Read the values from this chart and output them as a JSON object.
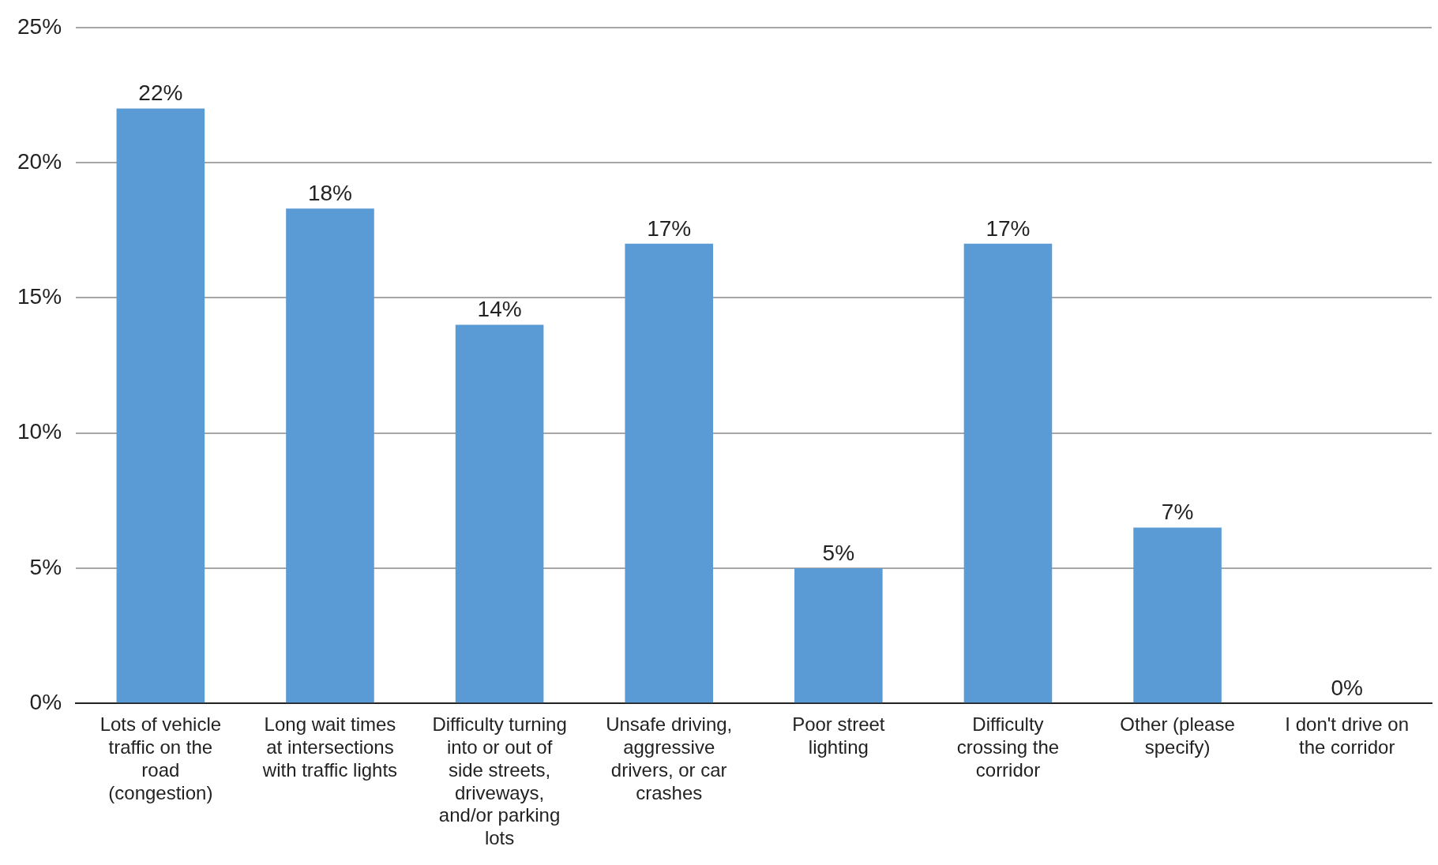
{
  "chart_data": {
    "type": "bar",
    "categories": [
      "Lots of vehicle traffic on the road (congestion)",
      "Long wait times at intersections with traffic lights",
      "Difficulty turning into or out of side streets, driveways, and/or parking lots",
      "Unsafe driving, aggressive drivers, or car crashes",
      "Poor street lighting",
      "Difficulty crossing the corridor",
      "Other (please specify)",
      "I don't drive on the corridor"
    ],
    "values": [
      22,
      18.3,
      14,
      17,
      5,
      17,
      6.5,
      0
    ],
    "value_labels": [
      "22%",
      "18%",
      "14%",
      "17%",
      "5%",
      "17%",
      "7%",
      "0%"
    ],
    "color": "#5b9bd5",
    "ylim": [
      0,
      25
    ],
    "yticks": [
      {
        "value": 0,
        "label": "0%"
      },
      {
        "value": 5,
        "label": "5%"
      },
      {
        "value": 10,
        "label": "10%"
      },
      {
        "value": 15,
        "label": "15%"
      },
      {
        "value": 20,
        "label": "20%"
      },
      {
        "value": 25,
        "label": "25%"
      }
    ],
    "grid": "y",
    "legend": false
  }
}
